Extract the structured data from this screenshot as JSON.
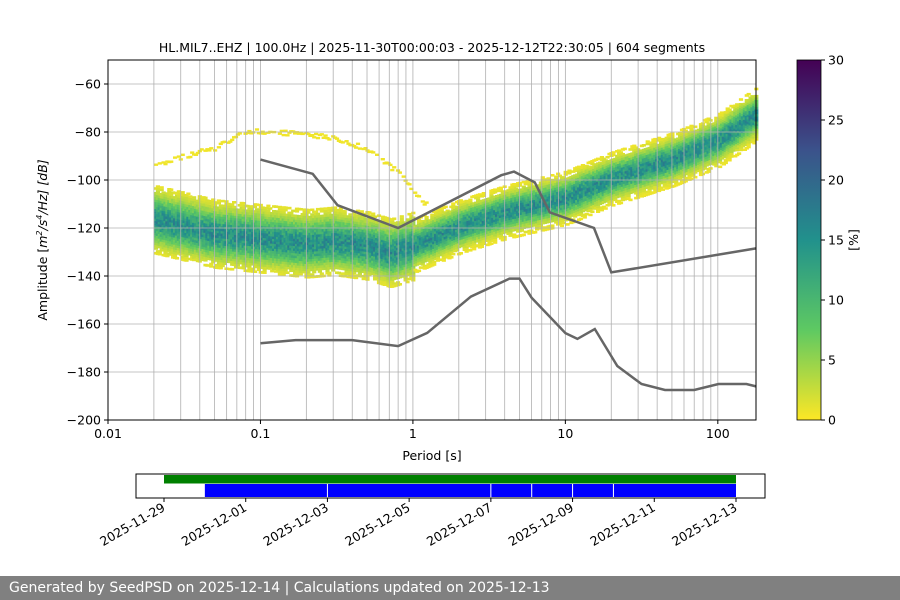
{
  "chart_data": {
    "type": "heatmap",
    "title": "HL.MIL7..EHZ | 100.0Hz | 2025-11-30T00:00:03 - 2025-12-12T22:30:05 | 604 segments",
    "xlabel": "Period [s]",
    "ylabel": "Amplitude [m²/s⁴/Hz] [dB]",
    "ylabel_parts": {
      "pre": "Amplitude [",
      "m": "m",
      "sup1": "2",
      "mid": "/s",
      "sup2": "4",
      "post": "/Hz] [dB]"
    },
    "x_scale": "log",
    "xlim": [
      0.01,
      178
    ],
    "ylim": [
      -200,
      -50
    ],
    "x_ticks": [
      {
        "v": 0.01,
        "label": "0.01"
      },
      {
        "v": 0.1,
        "label": "0.1"
      },
      {
        "v": 1,
        "label": "1"
      },
      {
        "v": 10,
        "label": "10"
      },
      {
        "v": 100,
        "label": "100"
      }
    ],
    "y_ticks": [
      -60,
      -80,
      -100,
      -120,
      -140,
      -160,
      -180,
      -200
    ],
    "grid": true,
    "colormap": "viridis_r",
    "colorbar": {
      "label": "[%]",
      "range": [
        0,
        30
      ],
      "ticks": [
        0,
        5,
        10,
        15,
        20,
        25,
        30
      ]
    },
    "psd_mode_curve": [
      [
        0.02,
        -117
      ],
      [
        0.05,
        -123
      ],
      [
        0.1,
        -125
      ],
      [
        0.2,
        -127
      ],
      [
        0.3,
        -126
      ],
      [
        0.5,
        -128
      ],
      [
        0.7,
        -131
      ],
      [
        1,
        -128
      ],
      [
        2,
        -120
      ],
      [
        4,
        -114
      ],
      [
        10,
        -108
      ],
      [
        20,
        -100
      ],
      [
        50,
        -92
      ],
      [
        100,
        -84
      ],
      [
        178,
        -73
      ]
    ],
    "psd_outlier_band": [
      [
        0.02,
        -95
      ],
      [
        0.05,
        -88
      ],
      [
        0.08,
        -81
      ],
      [
        0.15,
        -82
      ],
      [
        0.3,
        -84
      ],
      [
        0.5,
        -89
      ],
      [
        0.8,
        -99
      ],
      [
        1.2,
        -112
      ]
    ],
    "nhnm": [
      [
        0.1,
        -91.5
      ],
      [
        0.22,
        -97.4
      ],
      [
        0.32,
        -110.5
      ],
      [
        0.8,
        -120
      ],
      [
        3.8,
        -98
      ],
      [
        4.6,
        -96.5
      ],
      [
        6.3,
        -101
      ],
      [
        7.9,
        -113.5
      ],
      [
        15.4,
        -120
      ],
      [
        20,
        -138.5
      ],
      [
        178,
        -128.5
      ]
    ],
    "nlnm": [
      [
        0.1,
        -168
      ],
      [
        0.17,
        -166.7
      ],
      [
        0.4,
        -166.7
      ],
      [
        0.8,
        -169.2
      ],
      [
        1.24,
        -163.7
      ],
      [
        2.4,
        -148.6
      ],
      [
        4.3,
        -141.1
      ],
      [
        5,
        -141.1
      ],
      [
        6,
        -149
      ],
      [
        10,
        -163.8
      ],
      [
        12,
        -166.2
      ],
      [
        15.6,
        -162.1
      ],
      [
        21.9,
        -177.5
      ],
      [
        31.6,
        -185
      ],
      [
        45,
        -187.5
      ],
      [
        70,
        -187.5
      ],
      [
        101,
        -185
      ],
      [
        154,
        -185
      ],
      [
        178,
        -186
      ]
    ],
    "noise_model_color": "#666666",
    "timeline": {
      "ticks": [
        "2025-11-29",
        "2025-12-01",
        "2025-12-03",
        "2025-12-05",
        "2025-12-07",
        "2025-12-09",
        "2025-12-11",
        "2025-12-13"
      ],
      "available_data": {
        "color": "#008000",
        "start": "2025-11-29",
        "end": "2025-12-13"
      },
      "used_data": {
        "color": "#0000ff",
        "start": "2025-11-30",
        "end": "2025-12-13",
        "gaps": [
          "2025-12-03",
          "2025-12-07",
          "2025-12-08",
          "2025-12-09",
          "2025-12-10"
        ]
      }
    }
  },
  "footer": {
    "text": "Generated by SeedPSD on 2025-12-14 | Calculations updated on 2025-12-13"
  }
}
